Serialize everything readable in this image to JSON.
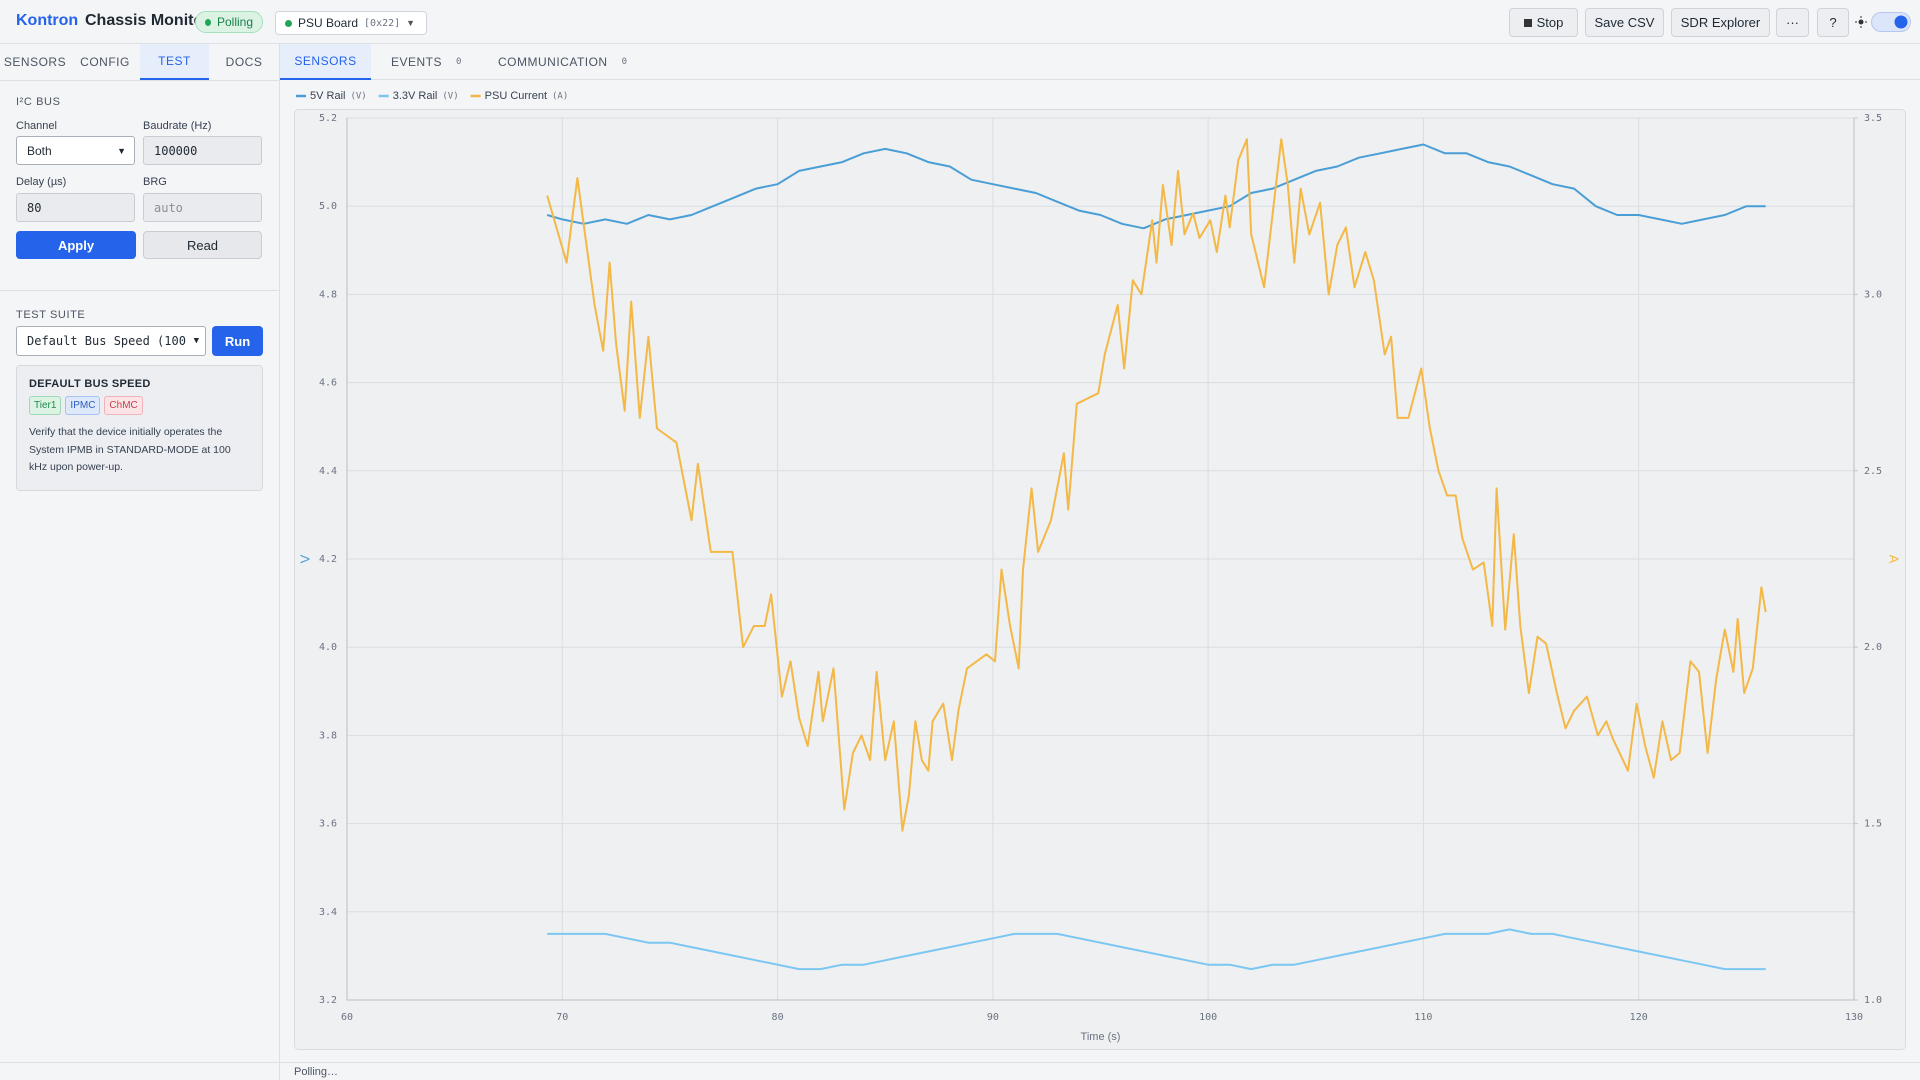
{
  "header": {
    "brand_1": "Kontron",
    "brand_2": "Chassis Monitor",
    "status": "Polling",
    "device": "PSU Board",
    "device_addr": "[0x22]",
    "buttons": [
      "Stop",
      "Save CSV",
      "SDR Explorer",
      "···",
      "?"
    ]
  },
  "sidebar": {
    "tabs": [
      "SENSORS",
      "CONFIG",
      "TEST",
      "DOCS"
    ],
    "i2c": {
      "title": "I²C BUS",
      "channel_label": "Channel",
      "channel": "Both",
      "baud_label": "Baudrate (Hz)",
      "baud": "100000",
      "delay_label": "Delay (µs)",
      "delay": "80",
      "brg_label": "BRG",
      "brg": "auto",
      "apply": "Apply",
      "read": "Read"
    },
    "test_suite": {
      "title": "TEST SUITE",
      "selected": "Default Bus Speed (100",
      "run": "Run",
      "card": {
        "title": "DEFAULT BUS SPEED",
        "tags": [
          "Tier1",
          "IPMC",
          "ChMC"
        ],
        "description": "Verify that the device initially operates the System IPMB in STANDARD-MODE at 100 kHz upon power-up."
      }
    }
  },
  "main_tabs": [
    {
      "label": "SENSORS"
    },
    {
      "label": "EVENTS",
      "count": 0
    },
    {
      "label": "COMMUNICATION",
      "count": 0
    }
  ],
  "status_bar": "Polling…",
  "chart_data": {
    "type": "line",
    "legend": "top-left",
    "grid": true,
    "xlabel": "Time (s)",
    "ylabel": "V",
    "y2label": "A",
    "xlim": [
      60,
      130
    ],
    "xticks": [
      60,
      70,
      80,
      90,
      100,
      110,
      120,
      130
    ],
    "ylim": [
      3.2,
      5.2
    ],
    "yticks": [
      3.2,
      3.4,
      3.6,
      3.8,
      {
        "value": 4,
        "label": "4.0"
      },
      4.2,
      4.4,
      4.6,
      4.8,
      {
        "value": 5,
        "label": "5.0"
      },
      5.2
    ],
    "y2lim": [
      1,
      3.5
    ],
    "y2ticks": [
      {
        "value": 1,
        "label": "1.0"
      },
      1.5,
      {
        "value": 2,
        "label": "2.0"
      },
      2.5,
      {
        "value": 3,
        "label": "3.0"
      },
      3.5
    ],
    "series": [
      {
        "name": "5V Rail",
        "unit": "(V)",
        "color": "#4a9ed6",
        "axis": "y",
        "x": [
          69.3,
          70,
          71,
          72,
          73,
          74,
          75,
          76,
          77,
          78,
          79,
          80,
          81,
          82,
          83,
          84,
          85,
          86,
          87,
          88,
          89,
          90,
          91,
          92,
          93,
          94,
          95,
          96,
          97,
          98,
          99,
          100,
          101,
          102,
          103,
          104,
          105,
          106,
          107,
          108,
          109,
          110,
          111,
          112,
          113,
          114,
          115,
          116,
          117,
          118,
          119,
          120,
          121,
          122,
          123,
          124,
          125,
          125.9
        ],
        "values": [
          4.98,
          4.97,
          4.96,
          4.97,
          4.96,
          4.98,
          4.97,
          4.98,
          5.0,
          5.02,
          5.04,
          5.05,
          5.08,
          5.09,
          5.1,
          5.12,
          5.13,
          5.12,
          5.1,
          5.09,
          5.06,
          5.05,
          5.04,
          5.03,
          5.01,
          4.99,
          4.98,
          4.96,
          4.95,
          4.97,
          4.98,
          4.99,
          5.0,
          5.03,
          5.04,
          5.06,
          5.08,
          5.09,
          5.11,
          5.12,
          5.13,
          5.14,
          5.12,
          5.12,
          5.1,
          5.09,
          5.07,
          5.05,
          5.04,
          5.0,
          4.98,
          4.98,
          4.97,
          4.96,
          4.97,
          4.98,
          5.0,
          5.0
        ]
      },
      {
        "name": "3.3V Rail",
        "unit": "(V)",
        "color": "#7cc6f2",
        "axis": "y",
        "x": [
          69.3,
          70,
          71,
          72,
          73,
          74,
          75,
          76,
          77,
          78,
          79,
          80,
          81,
          82,
          83,
          84,
          85,
          86,
          87,
          88,
          89,
          90,
          91,
          92,
          93,
          94,
          95,
          96,
          97,
          98,
          99,
          100,
          101,
          102,
          103,
          104,
          105,
          106,
          107,
          108,
          109,
          110,
          111,
          112,
          113,
          114,
          115,
          116,
          117,
          118,
          119,
          120,
          121,
          122,
          123,
          124,
          125,
          125.9
        ],
        "values": [
          3.35,
          3.35,
          3.35,
          3.35,
          3.34,
          3.33,
          3.33,
          3.32,
          3.31,
          3.3,
          3.29,
          3.28,
          3.27,
          3.27,
          3.28,
          3.28,
          3.29,
          3.3,
          3.31,
          3.32,
          3.33,
          3.34,
          3.35,
          3.35,
          3.35,
          3.34,
          3.33,
          3.32,
          3.31,
          3.3,
          3.29,
          3.28,
          3.28,
          3.27,
          3.28,
          3.28,
          3.29,
          3.3,
          3.31,
          3.32,
          3.33,
          3.34,
          3.35,
          3.35,
          3.35,
          3.36,
          3.35,
          3.35,
          3.34,
          3.33,
          3.32,
          3.31,
          3.3,
          3.29,
          3.28,
          3.27,
          3.27,
          3.27
        ]
      },
      {
        "name": "PSU Current",
        "unit": "(A)",
        "color": "#f4b846",
        "axis": "y2",
        "x": [
          69.3,
          70.2,
          70.7,
          71.5,
          71.9,
          72.2,
          72.5,
          72.9,
          73.2,
          73.6,
          74.0,
          74.4,
          75.3,
          76.0,
          76.3,
          76.9,
          77.9,
          78.4,
          78.9,
          79.4,
          79.7,
          80.2,
          80.6,
          81.0,
          81.4,
          81.9,
          82.1,
          82.6,
          83.1,
          83.5,
          83.9,
          84.3,
          84.6,
          85.0,
          85.4,
          85.8,
          86.1,
          86.4,
          86.7,
          87.0,
          87.2,
          87.7,
          88.1,
          88.4,
          88.8,
          89.7,
          90.1,
          90.4,
          90.8,
          91.2,
          91.4,
          91.8,
          92.1,
          92.7,
          93.3,
          93.5,
          93.9,
          94.9,
          95.2,
          95.8,
          96.1,
          96.5,
          96.9,
          97.4,
          97.6,
          97.9,
          98.3,
          98.6,
          98.9,
          99.3,
          99.6,
          100.1,
          100.4,
          100.8,
          101.0,
          101.4,
          101.8,
          102.0,
          102.6,
          103.0,
          103.4,
          103.7,
          104.0,
          104.3,
          104.7,
          105.2,
          105.6,
          106.0,
          106.4,
          106.8,
          107.3,
          107.7,
          108.2,
          108.5,
          108.8,
          109.3,
          109.9,
          110.3,
          110.7,
          111.1,
          111.5,
          111.8,
          112.3,
          112.8,
          113.2,
          113.4,
          113.8,
          114.2,
          114.5,
          114.9,
          115.3,
          115.7,
          116.2,
          116.6,
          117.0,
          117.6,
          118.1,
          118.5,
          118.8,
          119.5,
          119.9,
          120.3,
          120.7,
          121.1,
          121.5,
          121.9,
          122.4,
          122.8,
          123.2,
          123.6,
          124.0,
          124.4,
          124.6,
          124.9,
          125.3,
          125.7,
          125.9
        ],
        "values": [
          3.28,
          3.09,
          3.33,
          2.97,
          2.84,
          3.09,
          2.86,
          2.67,
          2.98,
          2.65,
          2.88,
          2.62,
          2.58,
          2.36,
          2.52,
          2.27,
          2.27,
          2,
          2.06,
          2.06,
          2.15,
          1.86,
          1.96,
          1.8,
          1.72,
          1.93,
          1.79,
          1.94,
          1.54,
          1.7,
          1.75,
          1.68,
          1.93,
          1.68,
          1.79,
          1.48,
          1.58,
          1.79,
          1.68,
          1.65,
          1.79,
          1.84,
          1.68,
          1.82,
          1.94,
          1.98,
          1.96,
          2.22,
          2.06,
          1.94,
          2.22,
          2.45,
          2.27,
          2.36,
          2.55,
          2.39,
          2.69,
          2.72,
          2.83,
          2.97,
          2.79,
          3.04,
          3,
          3.21,
          3.09,
          3.31,
          3.14,
          3.35,
          3.17,
          3.23,
          3.16,
          3.21,
          3.12,
          3.28,
          3.19,
          3.38,
          3.44,
          3.17,
          3.02,
          3.23,
          3.44,
          3.31,
          3.09,
          3.3,
          3.17,
          3.26,
          3,
          3.14,
          3.19,
          3.02,
          3.12,
          3.04,
          2.83,
          2.88,
          2.65,
          2.65,
          2.79,
          2.62,
          2.5,
          2.43,
          2.43,
          2.31,
          2.22,
          2.24,
          2.06,
          2.45,
          2.05,
          2.32,
          2.06,
          1.87,
          2.03,
          2.01,
          1.87,
          1.77,
          1.82,
          1.86,
          1.75,
          1.79,
          1.74,
          1.65,
          1.84,
          1.72,
          1.63,
          1.79,
          1.68,
          1.7,
          1.96,
          1.93,
          1.7,
          1.91,
          2.05,
          1.93,
          2.08,
          1.87,
          1.94,
          2.17,
          2.1
        ]
      }
    ]
  }
}
